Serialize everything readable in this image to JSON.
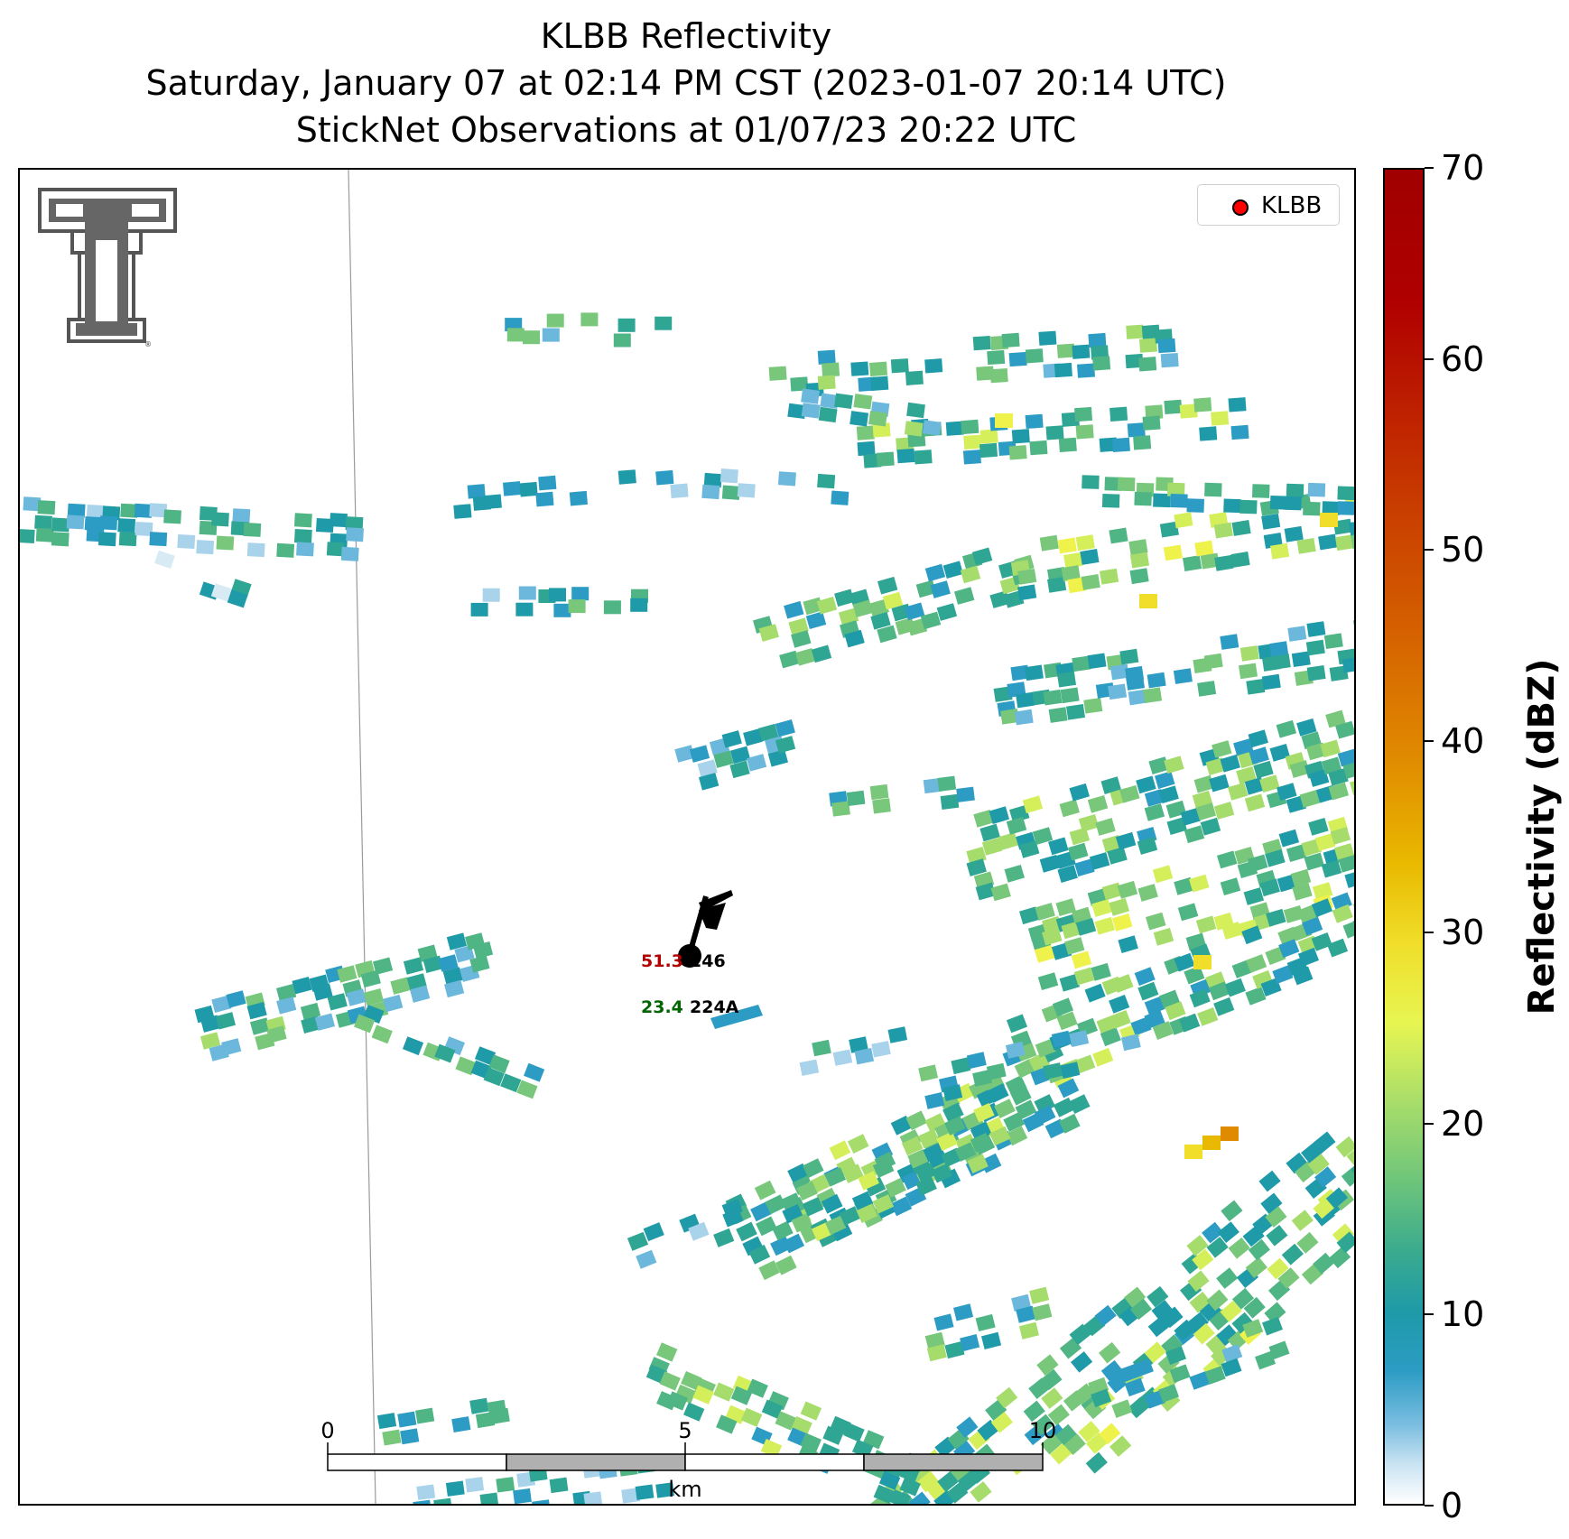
{
  "title": {
    "line1": "KLBB Reflectivity",
    "line2": "Saturday, January 07 at 02:14 PM CST (2023-01-07 20:14 UTC)",
    "line3": "StickNet Observations at 01/07/23 20:22 UTC"
  },
  "legend": {
    "label": "KLBB",
    "marker_color": "#ff0000"
  },
  "stations": [
    {
      "id": "246",
      "value": "51.3",
      "value_color": "#b00000"
    },
    {
      "id": "224A",
      "value": "23.4",
      "value_color": "#006400"
    }
  ],
  "scalebar": {
    "ticks": [
      "0",
      "5",
      "10"
    ],
    "unit": "km"
  },
  "colorbar": {
    "label": "Reflectivity (dBZ)",
    "ticks": [
      "0",
      "10",
      "20",
      "30",
      "40",
      "50",
      "60",
      "70"
    ],
    "range": [
      0,
      70
    ]
  },
  "chart_data": {
    "type": "heatmap",
    "title": "KLBB Reflectivity",
    "colorbar_label": "Reflectivity (dBZ)",
    "value_range": [
      0,
      70
    ],
    "legend_position": "top-right"
  },
  "logo": {
    "icon": "double-t-logo-icon"
  }
}
